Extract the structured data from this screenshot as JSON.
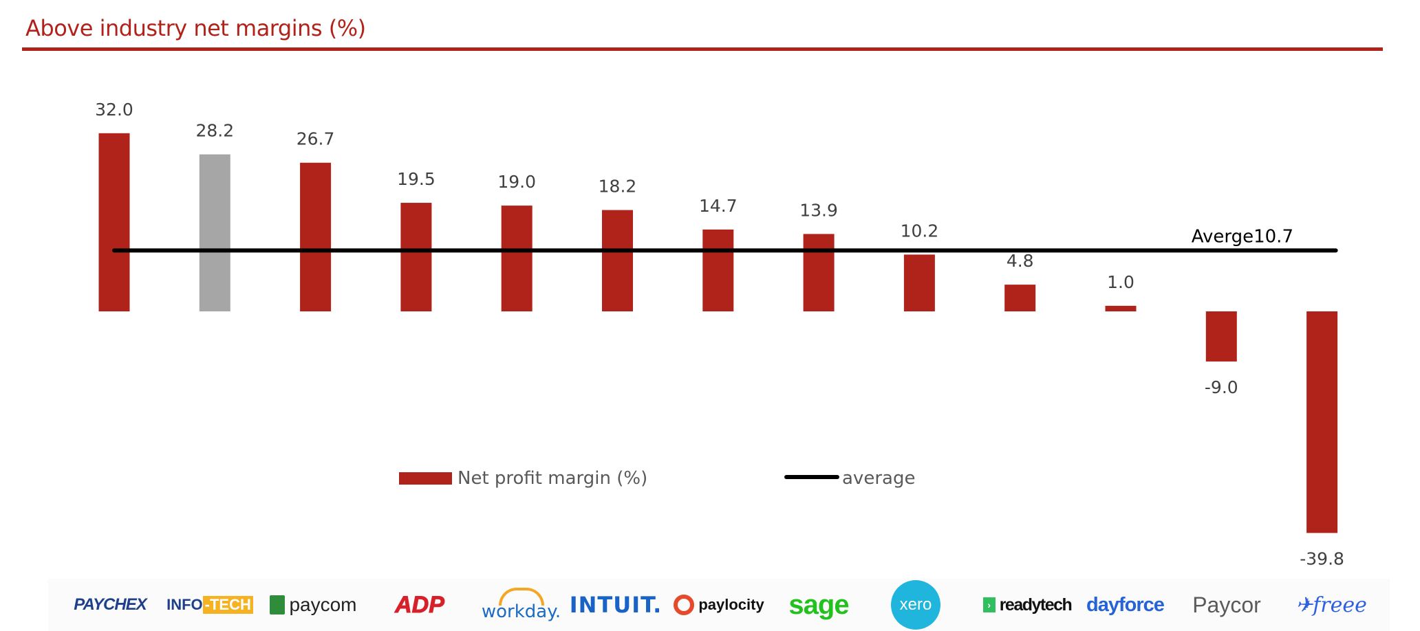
{
  "header": {
    "title": "Above industry net margins (%)"
  },
  "colors": {
    "accent": "#b0231a",
    "highlight_bar": "#a6a6a6",
    "average_line": "#000000",
    "label_text": "#404040"
  },
  "chart_data": {
    "type": "bar",
    "title": "Above industry net margins (%)",
    "xlabel": "",
    "ylabel": "",
    "categories": [
      "Paychex",
      "Info-Tech",
      "Paycom",
      "ADP",
      "Workday",
      "Intuit",
      "Paylocity",
      "Sage",
      "Xero",
      "ReadyTech",
      "Dayforce",
      "Paycor",
      "freee"
    ],
    "series": [
      {
        "name": "Net profit margin (%)",
        "type": "bar",
        "values": [
          32.0,
          28.2,
          26.7,
          19.5,
          19.0,
          18.2,
          14.7,
          13.9,
          10.2,
          4.8,
          1.0,
          -9.0,
          -39.8
        ],
        "labels": [
          "32.0",
          "28.2",
          "26.7",
          "19.5",
          "19.0",
          "18.2",
          "14.7",
          "13.9",
          "10.2",
          "4.8",
          "1.0",
          "-9.0",
          "-39.8"
        ],
        "highlight_index": 1
      },
      {
        "name": "average",
        "type": "line",
        "value": 10.7
      }
    ],
    "average_annotation": "Averge10.7",
    "ylim": [
      -42,
      38
    ],
    "grid": false,
    "axes_visible": false,
    "legend": {
      "position": "bottom-center",
      "items": [
        {
          "label": "Net profit margin (%)",
          "marker": "bar"
        },
        {
          "label": "average",
          "marker": "line"
        }
      ]
    }
  },
  "logos": [
    {
      "name": "PAYCHEX"
    },
    {
      "name_a": "INFO",
      "name_b": "-TECH"
    },
    {
      "name": "paycom"
    },
    {
      "name": "ADP"
    },
    {
      "name": "workday."
    },
    {
      "name": "INTUIT."
    },
    {
      "name": "paylocity"
    },
    {
      "name": "sage"
    },
    {
      "name": "xero"
    },
    {
      "name": "readytech"
    },
    {
      "name": "dayforce"
    },
    {
      "name": "Paycor"
    },
    {
      "name": "freee"
    }
  ]
}
